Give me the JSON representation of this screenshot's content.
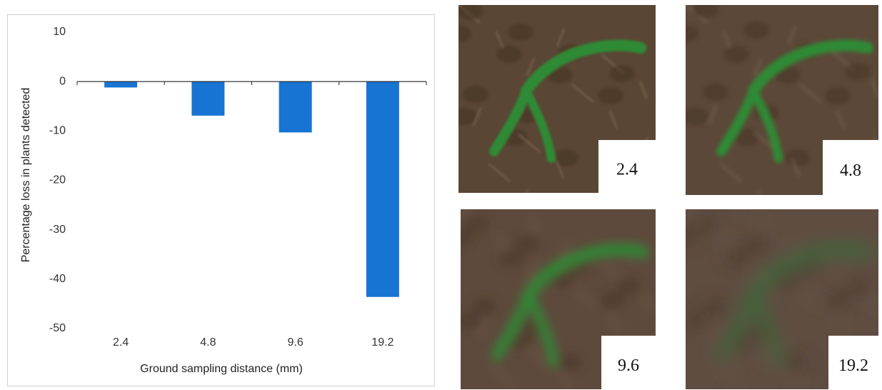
{
  "chart_data": {
    "type": "bar",
    "categories": [
      "2.4",
      "4.8",
      "9.6",
      "19.2"
    ],
    "values": [
      -1.2,
      -6.9,
      -10.3,
      -43.6
    ],
    "color": "#1874d2",
    "ylim": [
      -50,
      10
    ],
    "yticks": [
      10,
      0,
      -10,
      -20,
      -30,
      -40,
      -50
    ],
    "xlabel": "Ground sampling distance (mm)",
    "ylabel": "Percentage loss in plants detected",
    "grid": false
  },
  "image_panels": [
    {
      "label": "2.4"
    },
    {
      "label": "4.8"
    },
    {
      "label": "9.6"
    },
    {
      "label": "19.2"
    }
  ]
}
